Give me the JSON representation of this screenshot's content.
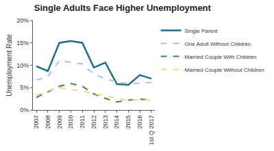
{
  "chart_data": {
    "type": "line",
    "title": "Single Adults Face Higher Unemployment",
    "y_label": "Unemployment Rate",
    "categories": [
      "2007",
      "2008",
      "2009",
      "2010",
      "2011",
      "2012",
      "2013",
      "2014",
      "2015",
      "2016",
      "1st Q 2017"
    ],
    "series": [
      {
        "name": "Single Parent",
        "color": "#1c6e8c",
        "line_style": "solid",
        "values": [
          9.8,
          8.7,
          15.0,
          15.4,
          15.0,
          9.5,
          10.6,
          5.8,
          5.6,
          7.8,
          7.0
        ]
      },
      {
        "name": "One Adult Without Children",
        "color": "#a9c3d9",
        "line_style": "dash",
        "values": [
          6.7,
          7.5,
          11.0,
          10.7,
          10.3,
          8.0,
          7.0,
          6.3,
          5.9,
          6.0,
          6.2
        ]
      },
      {
        "name": "Married Couple With Children",
        "color": "#3d8b3d",
        "line_style": "dash",
        "values": [
          2.8,
          4.0,
          5.3,
          5.9,
          5.3,
          3.6,
          2.6,
          1.8,
          2.2,
          2.4,
          2.3
        ]
      },
      {
        "name": "Married Couple Without Children",
        "color": "#f1d98c",
        "line_style": "dash",
        "values": [
          3.2,
          4.3,
          5.0,
          4.5,
          4.3,
          3.6,
          3.2,
          2.6,
          2.1,
          2.3,
          2.2
        ]
      }
    ],
    "ylim": [
      0,
      20
    ],
    "yticks": [
      {
        "value": 0,
        "label": "0%"
      },
      {
        "value": 5,
        "label": "5%"
      },
      {
        "value": 10,
        "label": "10%"
      },
      {
        "value": 15,
        "label": "15%"
      },
      {
        "value": 20,
        "label": "20%"
      }
    ],
    "grid": false,
    "legend": "right"
  }
}
